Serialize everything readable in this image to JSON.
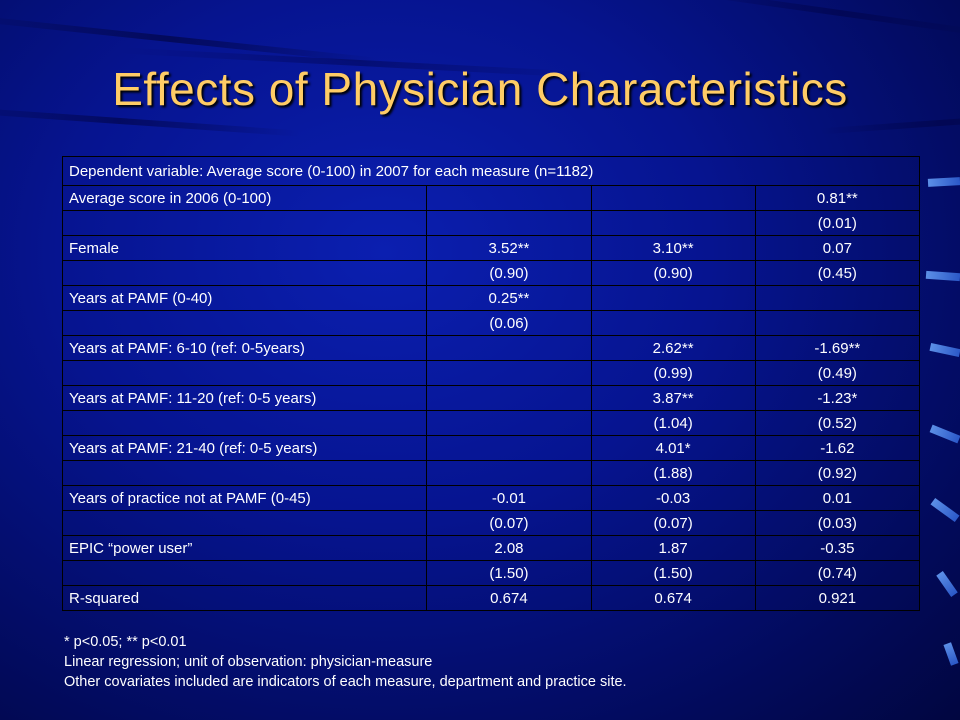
{
  "slide": {
    "title": "Effects of Physician Characteristics"
  },
  "table": {
    "header": "Dependent variable: Average score (0-100) in 2007 for each measure (n=1182)",
    "rows": [
      {
        "label": "Average score in 2006 (0-100)",
        "c1": "",
        "c2": "",
        "c3": "0.81**"
      },
      {
        "label": "",
        "c1": "",
        "c2": "",
        "c3": "(0.01)"
      },
      {
        "label": "Female",
        "c1": "3.52**",
        "c2": "3.10**",
        "c3": "0.07"
      },
      {
        "label": "",
        "c1": "(0.90)",
        "c2": "(0.90)",
        "c3": "(0.45)"
      },
      {
        "label": "Years at PAMF (0-40)",
        "c1": "0.25**",
        "c2": "",
        "c3": ""
      },
      {
        "label": "",
        "c1": "(0.06)",
        "c2": "",
        "c3": ""
      },
      {
        "label": "Years at PAMF: 6-10 (ref: 0-5years)",
        "c1": "",
        "c2": "2.62**",
        "c3": "-1.69**"
      },
      {
        "label": "",
        "c1": "",
        "c2": "(0.99)",
        "c3": "(0.49)"
      },
      {
        "label": "Years at PAMF: 11-20 (ref: 0-5 years)",
        "c1": "",
        "c2": "3.87**",
        "c3": "-1.23*"
      },
      {
        "label": "",
        "c1": "",
        "c2": "(1.04)",
        "c3": "(0.52)"
      },
      {
        "label": "Years at PAMF: 21-40 (ref: 0-5 years)",
        "c1": "",
        "c2": "4.01*",
        "c3": "-1.62"
      },
      {
        "label": "",
        "c1": "",
        "c2": "(1.88)",
        "c3": "(0.92)"
      },
      {
        "label": "Years of practice not at PAMF (0-45)",
        "c1": "-0.01",
        "c2": "-0.03",
        "c3": "0.01"
      },
      {
        "label": "",
        "c1": "(0.07)",
        "c2": "(0.07)",
        "c3": "(0.03)"
      },
      {
        "label": "EPIC “power user”",
        "c1": "2.08",
        "c2": "1.87",
        "c3": "-0.35"
      },
      {
        "label": "",
        "c1": "(1.50)",
        "c2": "(1.50)",
        "c3": "(0.74)"
      },
      {
        "label": "R-squared",
        "c1": "0.674",
        "c2": "0.674",
        "c3": "0.921"
      }
    ]
  },
  "notes": {
    "significance": "* p<0.05; ** p<0.01",
    "method": "Linear regression; unit of observation: physician-measure",
    "covariates": "Other covariates included are indicators of each measure, department and practice site."
  }
}
